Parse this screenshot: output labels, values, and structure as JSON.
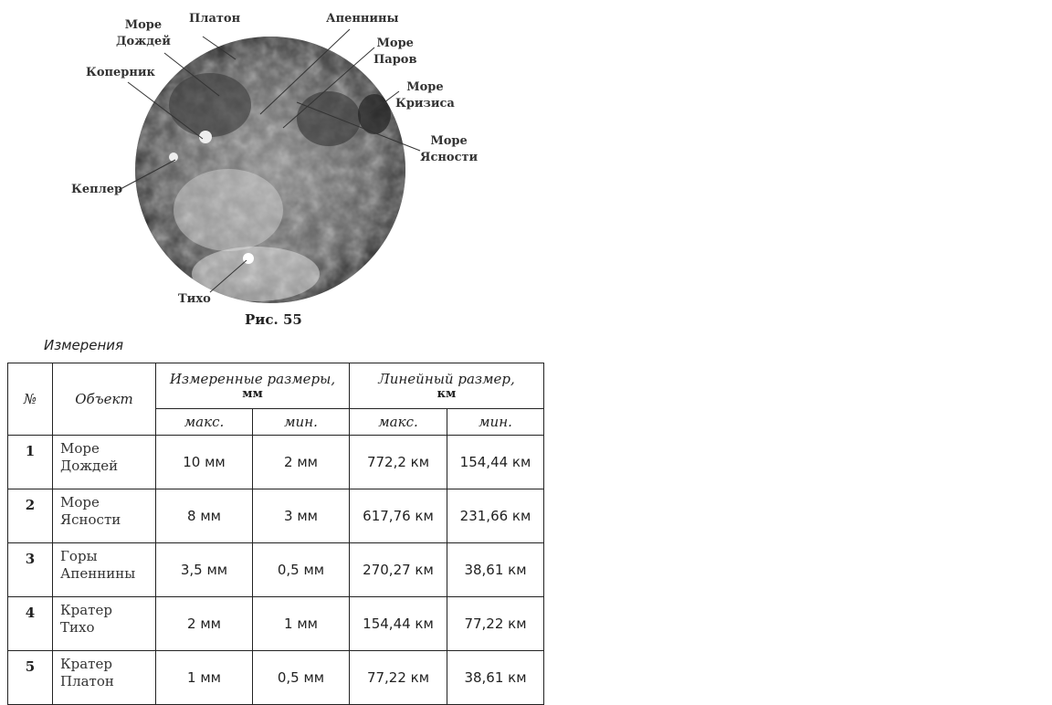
{
  "figure": {
    "labels": {
      "more_dozhdey": "Море\nДождей",
      "platon": "Платон",
      "apenniny": "Апеннины",
      "more_parov": "Море\nПаров",
      "kopernik": "Коперник",
      "more_krizisa": "Море\nКризиса",
      "more_yasnosti": "Море\nЯсности",
      "kepler": "Кеплер",
      "tiho": "Тихо"
    },
    "caption": "Рис. 55"
  },
  "table": {
    "title": "Измерения",
    "headers": {
      "no": "№",
      "object": "Объект",
      "measured": "Измеренные размеры,",
      "measured_unit": "мм",
      "linear": "Линейный размер,",
      "linear_unit": "км",
      "max": "макс.",
      "min": "мин."
    },
    "rows": [
      {
        "no": "1",
        "object": "Море\nДождей",
        "mmax": "10 мм",
        "mmin": "2 мм",
        "kmax": "772,2 км",
        "kmin": "154,44 км"
      },
      {
        "no": "2",
        "object": "Море\nЯсности",
        "mmax": "8 мм",
        "mmin": "3 мм",
        "kmax": "617,76 км",
        "kmin": "231,66 км"
      },
      {
        "no": "3",
        "object": "Горы\nАпеннины",
        "mmax": "3,5 мм",
        "mmin": "0,5 мм",
        "kmax": "270,27 км",
        "kmin": "38,61 км"
      },
      {
        "no": "4",
        "object": "Кратер\nТихо",
        "mmax": "2 мм",
        "mmin": "1 мм",
        "kmax": "154,44 км",
        "kmin": "77,22 км"
      },
      {
        "no": "5",
        "object": "Кратер\nПлатон",
        "mmax": "1 мм",
        "mmin": "0,5 мм",
        "kmax": "77,22 км",
        "kmin": "38,61 км"
      }
    ]
  }
}
